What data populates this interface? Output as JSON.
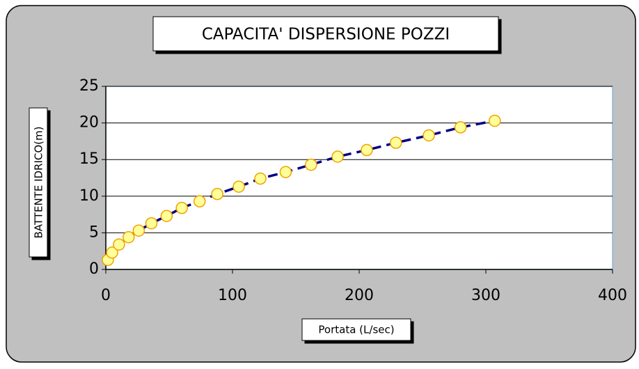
{
  "chart_data": {
    "type": "scatter",
    "title": "CAPACITA' DISPERSIONE POZZI",
    "xlabel": "Portata (L/sec)",
    "ylabel": "BATTENTE IDRICO(m)",
    "x": [
      1.6,
      5,
      10.4,
      18,
      26,
      36,
      48,
      60,
      74,
      88,
      105,
      122,
      142,
      162,
      183,
      206,
      229,
      255,
      280,
      307
    ],
    "values": [
      1.3,
      2.3,
      3.4,
      4.4,
      5.3,
      6.3,
      7.3,
      8.4,
      9.3,
      10.3,
      11.3,
      12.4,
      13.3,
      14.3,
      15.4,
      16.3,
      17.3,
      18.3,
      19.4,
      20.3
    ],
    "color": "#000080",
    "marker_fill": "#ffff99",
    "marker_edge": "#f0a000",
    "xlim": [
      0,
      400
    ],
    "xticks": [
      0,
      100,
      200,
      300,
      400
    ],
    "ylim": [
      0,
      25
    ],
    "yticks": [
      0,
      5,
      10,
      15,
      20,
      25
    ],
    "grid": true
  }
}
